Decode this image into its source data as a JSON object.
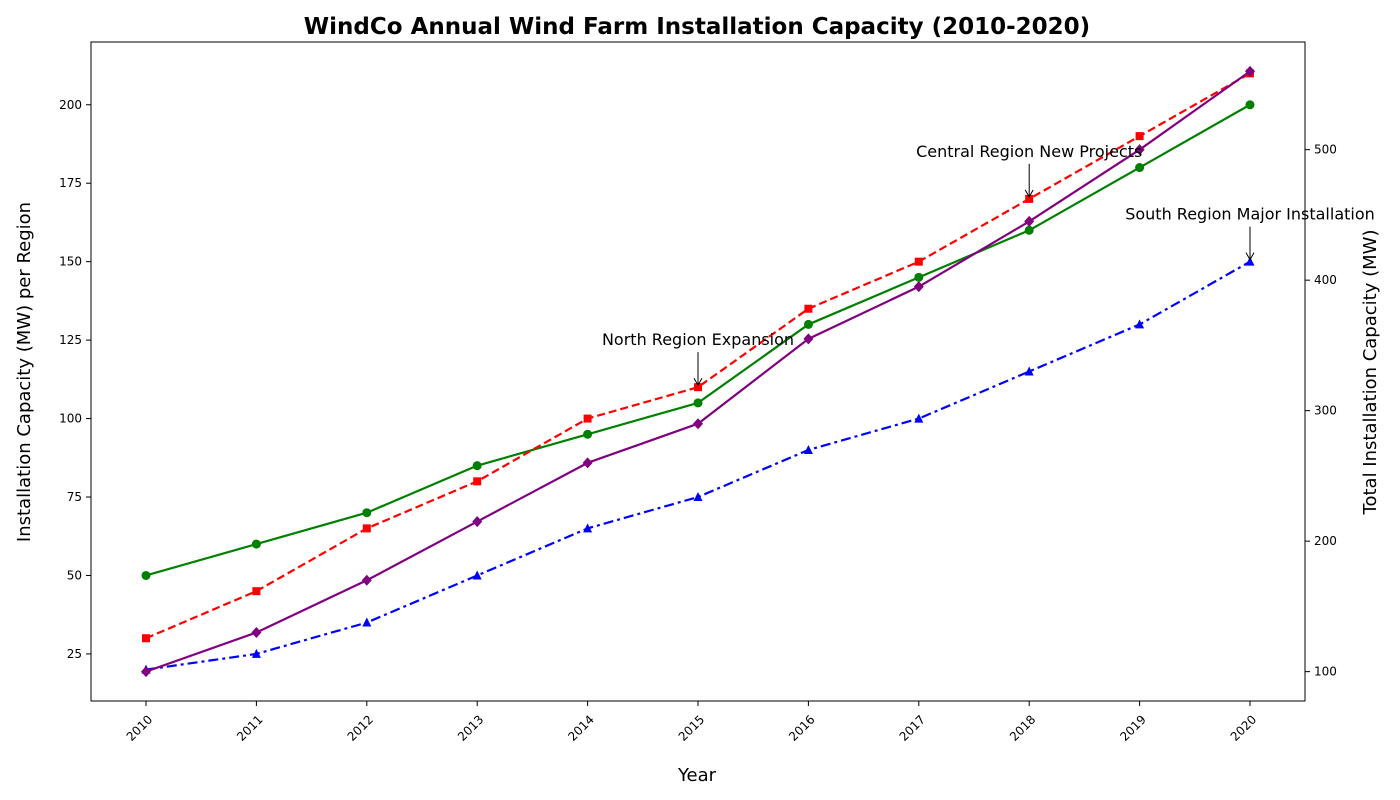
{
  "chart_data": {
    "type": "line",
    "title": "WindCo Annual Wind Farm Installation Capacity (2010-2020)",
    "xlabel": "Year",
    "ylabel": "Installation Capacity (MW) per Region",
    "y2label": "Total Installation Capacity (MW)",
    "categories": [
      "2010",
      "2011",
      "2012",
      "2013",
      "2014",
      "2015",
      "2016",
      "2017",
      "2018",
      "2019",
      "2020"
    ],
    "y_left_range": [
      10,
      220
    ],
    "y_left_ticks": [
      25,
      50,
      75,
      100,
      125,
      150,
      175,
      200
    ],
    "y_right_range": [
      77.5,
      582.5
    ],
    "y_right_ticks": [
      100,
      200,
      300,
      400,
      500
    ],
    "grid": false,
    "series": [
      {
        "axis": "left",
        "color": "#008000",
        "style": "solid",
        "marker": "circle",
        "values": [
          50,
          60,
          70,
          85,
          95,
          105,
          130,
          145,
          160,
          180,
          200
        ]
      },
      {
        "axis": "left",
        "color": "#ff0000",
        "style": "dashed",
        "marker": "square",
        "values": [
          30,
          45,
          65,
          80,
          100,
          110,
          135,
          150,
          170,
          190,
          210
        ]
      },
      {
        "axis": "left",
        "color": "#0000ff",
        "style": "dashdot",
        "marker": "triangle",
        "values": [
          20,
          25,
          35,
          50,
          65,
          75,
          90,
          100,
          115,
          130,
          150
        ]
      },
      {
        "axis": "right",
        "color": "#800080",
        "style": "solid",
        "marker": "diamond",
        "values": [
          100,
          130,
          170,
          215,
          260,
          290,
          355,
          395,
          445,
          500,
          560
        ]
      }
    ],
    "annotations": [
      {
        "text": "North Region Expansion",
        "x": "2015",
        "y": 110
      },
      {
        "text": "Central Region New Projects",
        "x": "2018",
        "y": 170
      },
      {
        "text": "South Region Major Installation",
        "x": "2020",
        "y": 150
      }
    ]
  }
}
